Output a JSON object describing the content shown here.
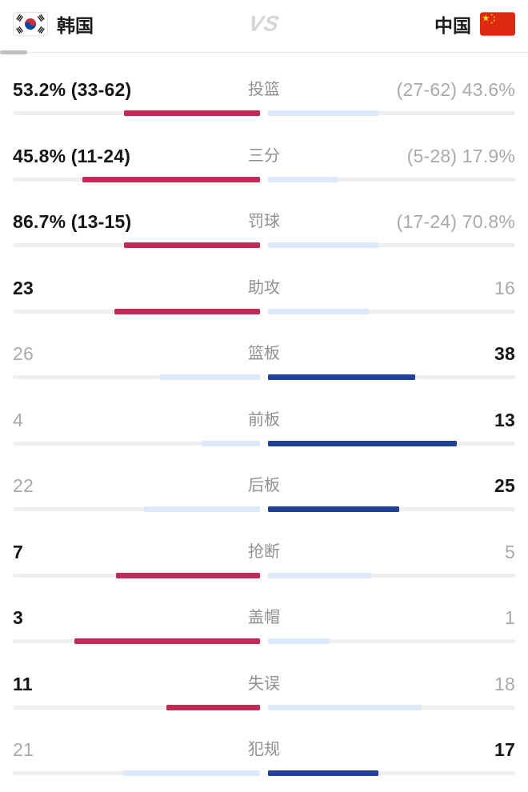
{
  "header": {
    "left_team": "韩国",
    "right_team": "中国",
    "vs_label": "VS"
  },
  "colors": {
    "left_win_bar": "#c12a56",
    "right_win_bar": "#20409a",
    "lose_bar": "#dbe9fb",
    "track": "#efeff1",
    "win_text": "#161616",
    "lose_text": "#a9a9ae",
    "label_text": "#8f9095"
  },
  "rows": [
    {
      "label": "投篮",
      "left_display": "53.2% (33-62)",
      "right_display": "(27-62) 43.6%",
      "left_value": 53.2,
      "right_value": 43.6,
      "winner": "left"
    },
    {
      "label": "三分",
      "left_display": "45.8% (11-24)",
      "right_display": "(5-28) 17.9%",
      "left_value": 45.8,
      "right_value": 17.9,
      "winner": "left"
    },
    {
      "label": "罚球",
      "left_display": "86.7% (13-15)",
      "right_display": "(17-24) 70.8%",
      "left_value": 86.7,
      "right_value": 70.8,
      "winner": "left"
    },
    {
      "label": "助攻",
      "left_display": "23",
      "right_display": "16",
      "left_value": 23,
      "right_value": 16,
      "winner": "left"
    },
    {
      "label": "篮板",
      "left_display": "26",
      "right_display": "38",
      "left_value": 26,
      "right_value": 38,
      "winner": "right"
    },
    {
      "label": "前板",
      "left_display": "4",
      "right_display": "13",
      "left_value": 4,
      "right_value": 13,
      "winner": "right"
    },
    {
      "label": "后板",
      "left_display": "22",
      "right_display": "25",
      "left_value": 22,
      "right_value": 25,
      "winner": "right"
    },
    {
      "label": "抢断",
      "left_display": "7",
      "right_display": "5",
      "left_value": 7,
      "right_value": 5,
      "winner": "left"
    },
    {
      "label": "盖帽",
      "left_display": "3",
      "right_display": "1",
      "left_value": 3,
      "right_value": 1,
      "winner": "left"
    },
    {
      "label": "失误",
      "left_display": "11",
      "right_display": "18",
      "left_value": 11,
      "right_value": 18,
      "winner": "left"
    },
    {
      "label": "犯规",
      "left_display": "21",
      "right_display": "17",
      "left_value": 21,
      "right_value": 17,
      "winner": "right"
    }
  ],
  "chart_data": {
    "type": "bar",
    "subtype": "butterfly-comparison",
    "title": "韩国 vs 中国 比赛技术统计",
    "categories": [
      "投篮",
      "三分",
      "罚球",
      "助攻",
      "篮板",
      "前板",
      "后板",
      "抢断",
      "盖帽",
      "失误",
      "犯规"
    ],
    "series": [
      {
        "name": "韩国",
        "values": [
          53.2,
          45.8,
          86.7,
          23,
          26,
          4,
          22,
          7,
          3,
          11,
          21
        ],
        "labels": [
          "53.2% (33-62)",
          "45.8% (11-24)",
          "86.7% (13-15)",
          "23",
          "26",
          "4",
          "22",
          "7",
          "3",
          "11",
          "21"
        ],
        "highlight_color": "#c12a56"
      },
      {
        "name": "中国",
        "values": [
          43.6,
          17.9,
          70.8,
          16,
          38,
          13,
          25,
          5,
          1,
          18,
          17
        ],
        "labels": [
          "(27-62) 43.6%",
          "(5-28) 17.9%",
          "(17-24) 70.8%",
          "16",
          "38",
          "13",
          "25",
          "5",
          "1",
          "18",
          "17"
        ],
        "highlight_color": "#20409a"
      }
    ],
    "row_winners": [
      "left",
      "left",
      "left",
      "left",
      "right",
      "right",
      "right",
      "left",
      "left",
      "left",
      "right"
    ],
    "layout": {
      "bar_scaling": "bar width = value / (left_value + right_value) of each half track",
      "loser_bar_color": "#dbe9fb",
      "legend_position": "header",
      "grid": false
    }
  }
}
